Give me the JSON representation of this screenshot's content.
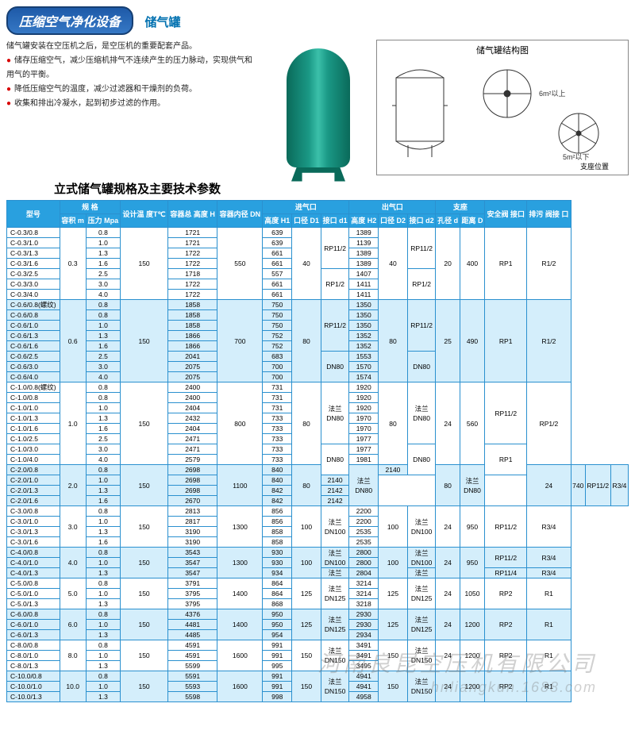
{
  "header": {
    "banner": "压缩空气净化设备",
    "subtitle": "储气罐",
    "diagram_title": "储气罐结构图",
    "diagram_notes": [
      "6m²以上",
      "5m²以下",
      "支座位置"
    ]
  },
  "desc": {
    "line1": "储气罐安装在空压机之后，是空压机的重要配套产品。",
    "b1": "储存压缩空气，减少压缩机排气不连续产生的压力脉动，实现供气和用气的平衡。",
    "b2": "降低压缩空气的温度，减少过滤器和干燥剂的负荷。",
    "b3": "收集和排出冷凝水，起到初步过滤的作用。"
  },
  "params_title": "立式储气罐规格及主要技术参数",
  "cols": {
    "model": "型号",
    "spec": "规 格",
    "vol": "容积 m",
    "press": "压力 Mpa",
    "temp": "设计温 度T℃",
    "height": "容器总 高度 H",
    "dn": "容器内径 DN",
    "inlet": "进气口",
    "h1": "高度 H1",
    "d1": "口径 D1",
    "c1": "接口 d1",
    "outlet": "出气口",
    "h2": "高度 H2",
    "d2": "口径 D2",
    "c2": "接口 d2",
    "support": "支座",
    "hole": "孔径 d",
    "dist": "距离 D",
    "safe": "安全阀 接口",
    "drain": "排污 阀接 口"
  },
  "groups": [
    {
      "vol": "0.3",
      "temp": "150",
      "dn": "550",
      "d1": "40",
      "d2": "40",
      "hole": "20",
      "dist": "400",
      "safe": "RP1",
      "drain": "R1/2",
      "shade": false,
      "rows": [
        {
          "m": "C-0.3/0.8",
          "p": "0.8",
          "h": "1721",
          "h1": "639",
          "h2": "1389",
          "c1": "RP11/2",
          "c2": "RP11/2",
          "c1span": 4,
          "c2span": 4
        },
        {
          "m": "C-0.3/1.0",
          "p": "1.0",
          "h": "1721",
          "h1": "639",
          "h2": "1139"
        },
        {
          "m": "C-0.3/1.3",
          "p": "1.3",
          "h": "1722",
          "h1": "661",
          "h2": "1389"
        },
        {
          "m": "C-0.3/1.6",
          "p": "1.6",
          "h": "1722",
          "h1": "661",
          "h2": "1389"
        },
        {
          "m": "C-0.3/2.5",
          "p": "2.5",
          "h": "1718",
          "h1": "557",
          "h2": "1407",
          "c1": "RP1/2",
          "c2": "RP1/2",
          "c1span": 3,
          "c2span": 3
        },
        {
          "m": "C-0.3/3.0",
          "p": "3.0",
          "h": "1722",
          "h1": "661",
          "h2": "1411"
        },
        {
          "m": "C-0.3/4.0",
          "p": "4.0",
          "h": "1722",
          "h1": "661",
          "h2": "1411"
        }
      ]
    },
    {
      "vol": "0.6",
      "temp": "150",
      "dn": "700",
      "d1": "80",
      "d2": "80",
      "hole": "25",
      "dist": "490",
      "safe": "RP1",
      "drain": "R1/2",
      "shade": true,
      "rows": [
        {
          "m": "C-0.6/0.8(螺纹)",
          "p": "0.8",
          "h": "1858",
          "h1": "750",
          "h2": "1350",
          "c1": "RP11/2",
          "c2": "RP11/2",
          "c1span": 5,
          "c2span": 5
        },
        {
          "m": "C-0.6/0.8",
          "p": "0.8",
          "h": "1858",
          "h1": "750",
          "h2": "1350"
        },
        {
          "m": "C-0.6/1.0",
          "p": "1.0",
          "h": "1858",
          "h1": "750",
          "h2": "1350"
        },
        {
          "m": "C-0.6/1.3",
          "p": "1.3",
          "h": "1866",
          "h1": "752",
          "h2": "1352"
        },
        {
          "m": "C-0.6/1.6",
          "p": "1.6",
          "h": "1866",
          "h1": "752",
          "h2": "1352"
        },
        {
          "m": "C-0.6/2.5",
          "p": "2.5",
          "h": "2041",
          "h1": "683",
          "h2": "1553",
          "c1": "DN80",
          "c2": "DN80",
          "c1span": 3,
          "c2span": 3
        },
        {
          "m": "C-0.6/3.0",
          "p": "3.0",
          "h": "2075",
          "h1": "700",
          "h2": "1570"
        },
        {
          "m": "C-0.6/4.0",
          "p": "4.0",
          "h": "2075",
          "h1": "700",
          "h2": "1574"
        }
      ]
    },
    {
      "vol": "1.0",
      "temp": "150",
      "dn": "800",
      "d1": "80",
      "d2": "80",
      "hole": "24",
      "dist": "560",
      "safe": "",
      "drain": "RP1/2",
      "shade": false,
      "safe_rows": [
        {
          "v": "RP11/2",
          "span": 6
        },
        {
          "v": "RP1",
          "span": 3
        }
      ],
      "rows": [
        {
          "m": "C-1.0/0.8(螺纹)",
          "p": "0.8",
          "h": "2400",
          "h1": "731",
          "h2": "1920",
          "c1": "法兰 DN80",
          "c2": "法兰 DN80",
          "c1span": 6,
          "c2span": 6
        },
        {
          "m": "C-1.0/0.8",
          "p": "0.8",
          "h": "2400",
          "h1": "731",
          "h2": "1920"
        },
        {
          "m": "C-1.0/1.0",
          "p": "1.0",
          "h": "2404",
          "h1": "731",
          "h2": "1920"
        },
        {
          "m": "C-1.0/1.3",
          "p": "1.3",
          "h": "2432",
          "h1": "733",
          "h2": "1970"
        },
        {
          "m": "C-1.0/1.6",
          "p": "1.6",
          "h": "2404",
          "h1": "733",
          "h2": "1970"
        },
        {
          "m": "C-1.0/2.5",
          "p": "2.5",
          "h": "2471",
          "h1": "733",
          "h2": "1977"
        },
        {
          "m": "C-1.0/3.0",
          "p": "3.0",
          "h": "2471",
          "h1": "733",
          "h2": "1977",
          "c1": "DN80",
          "c2": "DN80",
          "c1span": 3,
          "c2span": 3
        },
        {
          "m": "C-1.0/4.0",
          "p": "4.0",
          "h": "2579",
          "h1": "733",
          "h2": "1981"
        },
        {
          "m": "",
          "p": "",
          "h": "",
          "h1": "",
          "h2": ""
        }
      ],
      "rows_real": 8
    },
    {
      "vol": "2.0",
      "temp": "150",
      "dn": "1100",
      "d1": "80",
      "d2": "80",
      "hole": "24",
      "dist": "740",
      "safe": "RP11/2",
      "drain": "R3/4",
      "shade": true,
      "rows": [
        {
          "m": "C-2.0/0.8",
          "p": "0.8",
          "h": "2698",
          "h1": "840",
          "h2": "2140",
          "c1": "法兰 DN80",
          "c2": "法兰 DN80",
          "c1span": 4,
          "c2span": 4
        },
        {
          "m": "C-2.0/1.0",
          "p": "1.0",
          "h": "2698",
          "h1": "840",
          "h2": "2140"
        },
        {
          "m": "C-2.0/1.3",
          "p": "1.3",
          "h": "2698",
          "h1": "842",
          "h2": "2142"
        },
        {
          "m": "C-2.0/1.6",
          "p": "1.6",
          "h": "2670",
          "h1": "842",
          "h2": "2142"
        }
      ]
    },
    {
      "vol": "3.0",
      "temp": "150",
      "dn": "1300",
      "d1": "100",
      "d2": "100",
      "hole": "24",
      "dist": "950",
      "safe": "RP11/2",
      "drain": "R3/4",
      "shade": false,
      "rows": [
        {
          "m": "C-3.0/0.8",
          "p": "0.8",
          "h": "2813",
          "h1": "856",
          "h2": "2200",
          "c1": "法兰 DN100",
          "c2": "法兰 DN100",
          "c1span": 4,
          "c2span": 4
        },
        {
          "m": "C-3.0/1.0",
          "p": "1.0",
          "h": "2817",
          "h1": "856",
          "h2": "2200"
        },
        {
          "m": "C-3.0/1.3",
          "p": "1.3",
          "h": "3190",
          "h1": "858",
          "h2": "2535"
        },
        {
          "m": "C-3.0/1.6",
          "p": "1.6",
          "h": "3190",
          "h1": "858",
          "h2": "2535"
        }
      ]
    },
    {
      "vol": "4.0",
      "temp": "150",
      "dn": "1300",
      "d1": "100",
      "d2": "100",
      "hole": "24",
      "dist": "950",
      "safe": "",
      "drain": "",
      "shade": true,
      "safe_rows": [
        {
          "v": "RP11/2",
          "span": 2
        },
        {
          "v": "RP11/4",
          "span": 1
        }
      ],
      "drain_rows": [
        {
          "v": "R3/4",
          "span": 2
        },
        {
          "v": "R3/4",
          "span": 1
        }
      ],
      "rows": [
        {
          "m": "C-4.0/0.8",
          "p": "0.8",
          "h": "3543",
          "h1": "930",
          "h2": "2800",
          "c1": "法兰 DN100",
          "c2": "法兰 DN100",
          "c1span": 2,
          "c2span": 2
        },
        {
          "m": "C-4.0/1.0",
          "p": "1.0",
          "h": "3547",
          "h1": "930",
          "h2": "2800"
        },
        {
          "m": "C-4.0/1.3",
          "p": "1.3",
          "h": "3547",
          "h1": "934",
          "h2": "2804",
          "c1": "法兰",
          "c2": "法兰",
          "c1span": 1,
          "c2span": 1
        }
      ]
    },
    {
      "vol": "5.0",
      "temp": "150",
      "dn": "1400",
      "d1": "125",
      "d2": "125",
      "hole": "24",
      "dist": "1050",
      "safe": "RP2",
      "drain": "R1",
      "shade": false,
      "rows": [
        {
          "m": "C-5.0/0.8",
          "p": "0.8",
          "h": "3791",
          "h1": "864",
          "h2": "3214",
          "c1": "法兰 DN125",
          "c2": "法兰 DN125",
          "c1span": 3,
          "c2span": 3
        },
        {
          "m": "C-5.0/1.0",
          "p": "1.0",
          "h": "3795",
          "h1": "864",
          "h2": "3214"
        },
        {
          "m": "C-5.0/1.3",
          "p": "1.3",
          "h": "3795",
          "h1": "868",
          "h2": "3218"
        }
      ]
    },
    {
      "vol": "6.0",
      "temp": "150",
      "dn": "1400",
      "d1": "125",
      "d2": "125",
      "hole": "24",
      "dist": "1200",
      "safe": "RP2",
      "drain": "R1",
      "shade": true,
      "rows": [
        {
          "m": "C-6.0/0.8",
          "p": "0.8",
          "h": "4376",
          "h1": "950",
          "h2": "2930",
          "c1": "法兰 DN125",
          "c2": "法兰 DN125",
          "c1span": 3,
          "c2span": 3
        },
        {
          "m": "C-6.0/1.0",
          "p": "1.0",
          "h": "4481",
          "h1": "950",
          "h2": "2930"
        },
        {
          "m": "C-6.0/1.3",
          "p": "1.3",
          "h": "4485",
          "h1": "954",
          "h2": "2934"
        }
      ]
    },
    {
      "vol": "8.0",
      "temp": "150",
      "dn": "1600",
      "d1": "150",
      "d2": "150",
      "hole": "24",
      "dist": "1200",
      "safe": "RP2",
      "drain": "R1",
      "shade": false,
      "rows": [
        {
          "m": "C-8.0/0.8",
          "p": "0.8",
          "h": "4591",
          "h1": "991",
          "h2": "3491",
          "c1": "法兰 DN150",
          "c2": "法兰 DN150",
          "c1span": 3,
          "c2span": 3
        },
        {
          "m": "C-8.0/1.0",
          "p": "1.0",
          "h": "4591",
          "h1": "991",
          "h2": "3491"
        },
        {
          "m": "C-8.0/1.3",
          "p": "1.3",
          "h": "5599",
          "h1": "995",
          "h2": "3495"
        }
      ]
    },
    {
      "vol": "10.0",
      "temp": "150",
      "dn": "1600",
      "d1": "150",
      "d2": "150",
      "hole": "24",
      "dist": "1200",
      "safe": "RP2",
      "drain": "R1",
      "shade": true,
      "rows": [
        {
          "m": "C-10.0/0.8",
          "p": "0.8",
          "h": "5591",
          "h1": "991",
          "h2": "4941",
          "c1": "法兰 DN150",
          "c2": "法兰 DN150",
          "c1span": 3,
          "c2span": 3
        },
        {
          "m": "C-10.0/1.0",
          "p": "1.0",
          "h": "5593",
          "h1": "991",
          "h2": "4941"
        },
        {
          "m": "C-10.0/1.3",
          "p": "1.3",
          "h": "5598",
          "h1": "998",
          "h2": "4958"
        }
      ]
    }
  ],
  "watermark": {
    "line1": "河南良昆空压机有限公司",
    "line2": "hnliangkun.1688.com"
  },
  "colors": {
    "header_bg": "#29a0df",
    "header_fg": "#ffffff",
    "border": "#2a90cf",
    "shade": "#d4eefb",
    "accent": "#d80000",
    "banner1": "#1e5aa8",
    "banner2": "#3678c5"
  }
}
